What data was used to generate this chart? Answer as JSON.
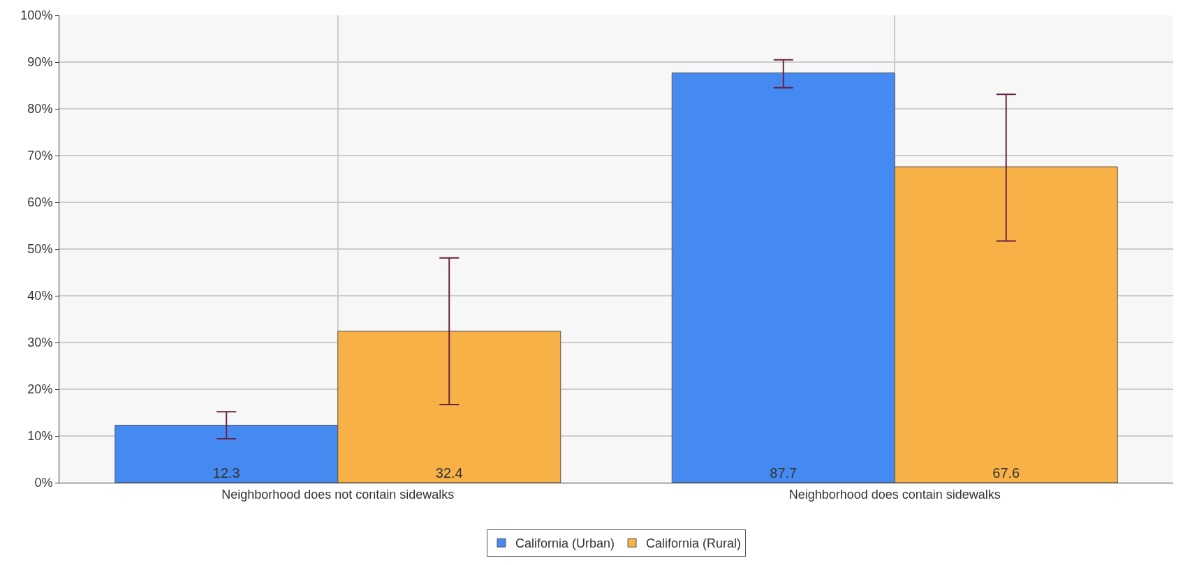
{
  "chart_data": {
    "type": "bar",
    "categories": [
      "Neighborhood does not contain sidewalks",
      "Neighborhood does contain sidewalks"
    ],
    "series": [
      {
        "name": "California (Urban)",
        "color": "#458af0",
        "values": [
          12.3,
          87.7
        ],
        "errors": [
          [
            9.4,
            15.2
          ],
          [
            84.5,
            90.5
          ]
        ],
        "value_labels": [
          "12.3",
          "87.7"
        ]
      },
      {
        "name": "California (Rural)",
        "color": "#f8b146",
        "values": [
          32.4,
          67.6
        ],
        "errors": [
          [
            16.7,
            48.1
          ],
          [
            51.7,
            83.1
          ]
        ],
        "value_labels": [
          "32.4",
          "67.6"
        ]
      }
    ],
    "ylim": [
      0,
      100
    ],
    "yticks": [
      {
        "value": 0,
        "label": "0%"
      },
      {
        "value": 10,
        "label": "10%"
      },
      {
        "value": 20,
        "label": "20%"
      },
      {
        "value": 30,
        "label": "30%"
      },
      {
        "value": 40,
        "label": "40%"
      },
      {
        "value": 50,
        "label": "50%"
      },
      {
        "value": 60,
        "label": "60%"
      },
      {
        "value": 70,
        "label": "70%"
      },
      {
        "value": 80,
        "label": "80%"
      },
      {
        "value": 90,
        "label": "90%"
      },
      {
        "value": 100,
        "label": "100%"
      }
    ],
    "grid": true,
    "legend": "bottom"
  }
}
